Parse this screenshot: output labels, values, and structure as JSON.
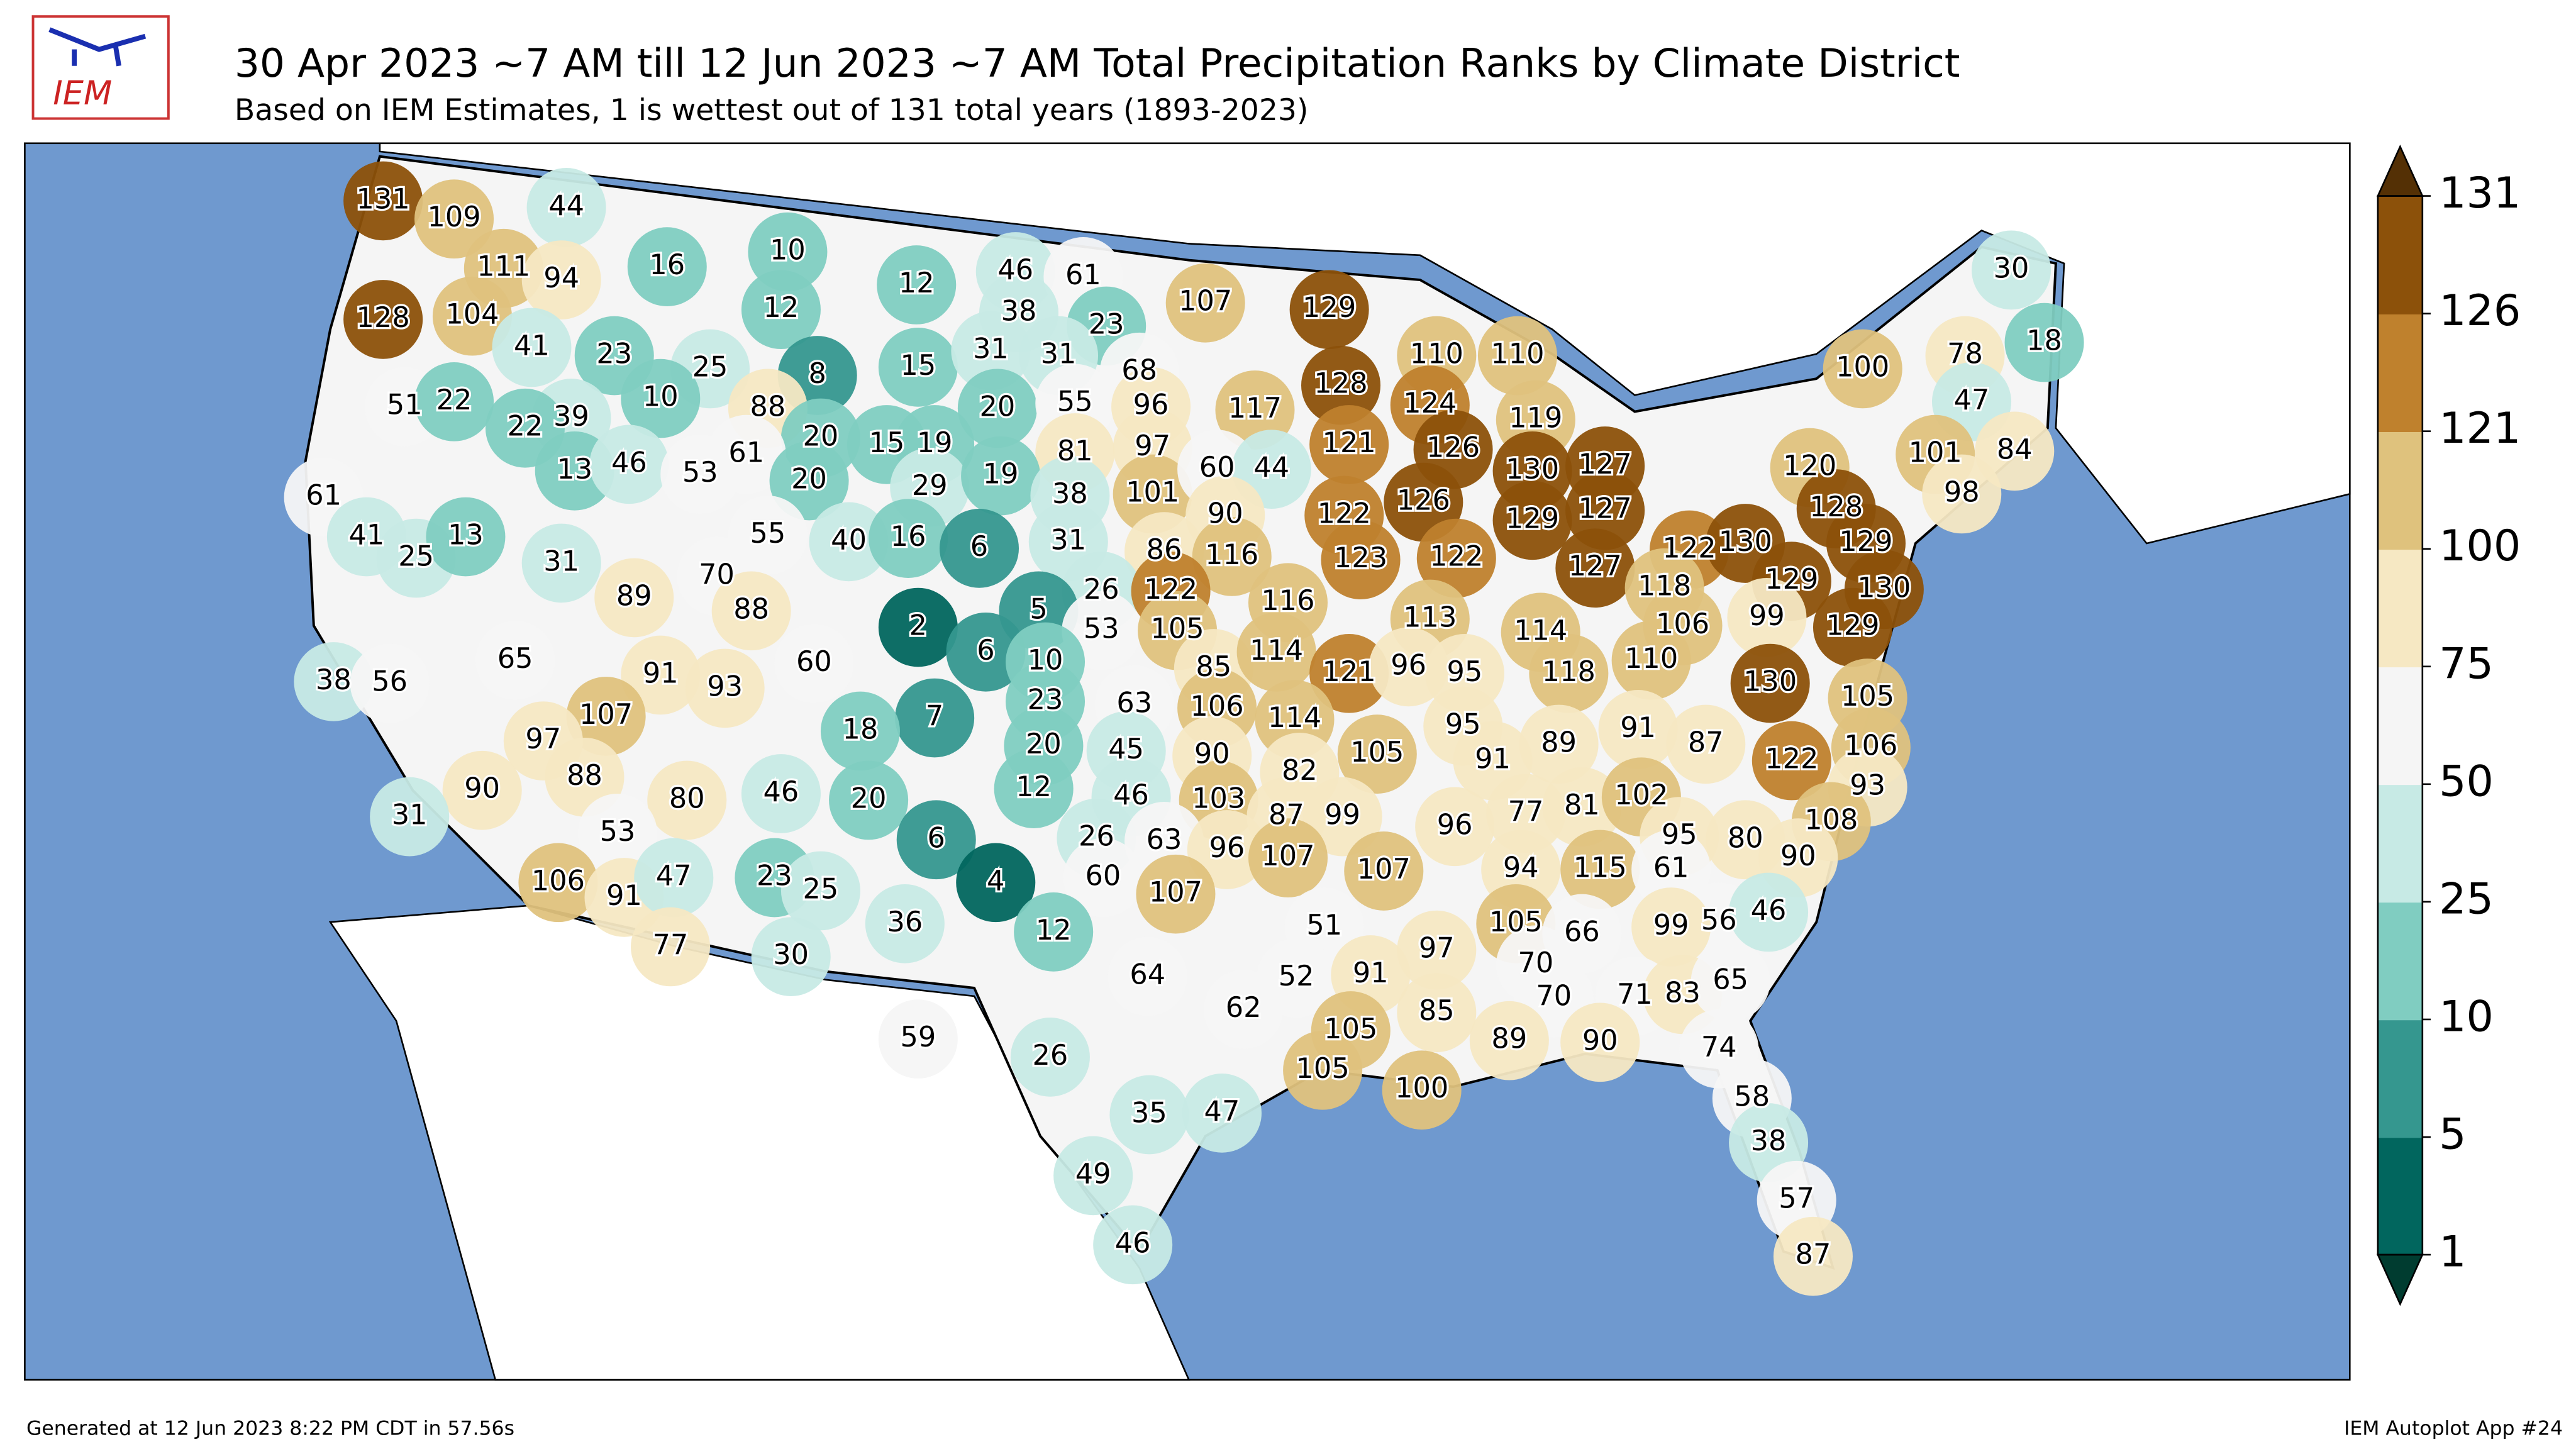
{
  "header": {
    "logo": "IEM",
    "title": "30 Apr 2023 ~7 AM till 12 Jun 2023 ~7 AM Total Precipitation Ranks by Climate District",
    "subtitle": "Based on IEM Estimates, 1 is wettest out of 131 total years (1893-2023)"
  },
  "map": {
    "labels": [
      131,
      109,
      44,
      16,
      10,
      12,
      46,
      61,
      111,
      94,
      104,
      128,
      41,
      23,
      12,
      38,
      23,
      107,
      129,
      25,
      8,
      15,
      31,
      31,
      68,
      51,
      22,
      39,
      10,
      88,
      20,
      55,
      96,
      110,
      110,
      117,
      128,
      124,
      119,
      100,
      78,
      47,
      18,
      30,
      22,
      20,
      15,
      19,
      81,
      97,
      121,
      126,
      130,
      127,
      120,
      101,
      84,
      98,
      13,
      46,
      53,
      61,
      20,
      29,
      19,
      38,
      101,
      60,
      44,
      90,
      122,
      126,
      129,
      127,
      128,
      61,
      41,
      25,
      13,
      31,
      55,
      40,
      16,
      6,
      31,
      86,
      116,
      123,
      122,
      127,
      122,
      118,
      130,
      129,
      89,
      70,
      26,
      122,
      116,
      129,
      130,
      88,
      2,
      5,
      53,
      105,
      113,
      114,
      106,
      99,
      129,
      65,
      91,
      93,
      60,
      6,
      10,
      85,
      114,
      121,
      96,
      95,
      118,
      110,
      38,
      56,
      107,
      23,
      63,
      106,
      7,
      114,
      95,
      130,
      105,
      97,
      18,
      20,
      45,
      90,
      105,
      91,
      89,
      91,
      87,
      122,
      106,
      88,
      90,
      80,
      46,
      20,
      12,
      46,
      82,
      103,
      93,
      87,
      99,
      96,
      77,
      81,
      102,
      108,
      53,
      31,
      6,
      26,
      63,
      96,
      107,
      107,
      95,
      80,
      90,
      106,
      91,
      47,
      23,
      25,
      4,
      60,
      107,
      94,
      115,
      61,
      56,
      46,
      99,
      36,
      12,
      51,
      105,
      66,
      97,
      77,
      30,
      64,
      70,
      62,
      52,
      91,
      71,
      83,
      65,
      59,
      70,
      26,
      85,
      105,
      89,
      90,
      74,
      105,
      100,
      58,
      35,
      47,
      38,
      49,
      57,
      46,
      87
    ]
  },
  "colorbar": {
    "ticks": [
      1,
      5,
      10,
      25,
      50,
      75,
      100,
      121,
      126,
      131
    ],
    "colors": [
      "#01665e",
      "#35978f",
      "#80cdc1",
      "#c7eae5",
      "#f5f5f5",
      "#f6e8c3",
      "#dfc27d",
      "#bf812d",
      "#8c510a"
    ],
    "extend_colors": [
      "#003c30",
      "#543005"
    ]
  },
  "footer": {
    "left": "Generated at 12 Jun 2023 8:22 PM CDT in 57.56s",
    "right": "IEM Autoplot App #24"
  }
}
